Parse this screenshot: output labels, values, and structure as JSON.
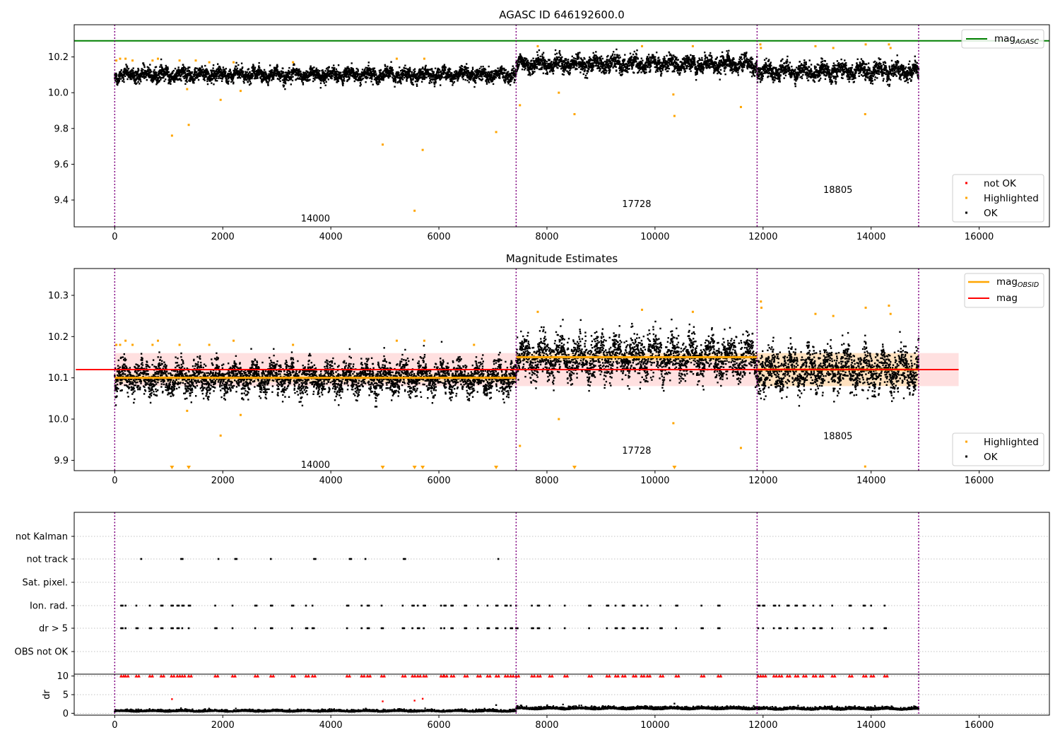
{
  "chart_data": [
    {
      "panel": "top",
      "type": "scatter",
      "title": "AGASC ID 646192600.0",
      "xlabel": "",
      "ylabel": "",
      "xlim": [
        -750,
        17300
      ],
      "ylim": [
        9.25,
        10.38
      ],
      "x_ticks": [
        0,
        2000,
        4000,
        6000,
        8000,
        10000,
        12000,
        14000,
        16000
      ],
      "y_ticks": [
        9.4,
        9.6,
        9.8,
        10.0,
        10.2
      ],
      "obs_boundaries": [
        0,
        7430,
        11890,
        14880
      ],
      "obs_labels": [
        {
          "label": "14000",
          "x": 3715,
          "y": 9.3
        },
        {
          "label": "17728",
          "x": 9660,
          "y": 9.38
        },
        {
          "label": "18805",
          "x": 13385,
          "y": 9.46
        }
      ],
      "mag_agasc": 10.29,
      "ok_segments": [
        {
          "x0": 0,
          "x1": 7430,
          "center": 10.1,
          "spread": 0.05
        },
        {
          "x0": 7430,
          "x1": 11890,
          "center": 10.16,
          "spread": 0.06
        },
        {
          "x0": 11890,
          "x1": 14880,
          "center": 10.12,
          "spread": 0.06
        }
      ],
      "highlighted_points": [
        [
          30,
          10.18
        ],
        [
          100,
          10.19
        ],
        [
          200,
          10.19
        ],
        [
          330,
          10.18
        ],
        [
          700,
          10.18
        ],
        [
          800,
          10.19
        ],
        [
          1060,
          9.76
        ],
        [
          1200,
          10.18
        ],
        [
          1340,
          10.02
        ],
        [
          1370,
          9.82
        ],
        [
          1500,
          10.18
        ],
        [
          1750,
          10.17
        ],
        [
          1960,
          9.96
        ],
        [
          2200,
          10.17
        ],
        [
          2330,
          10.01
        ],
        [
          3300,
          10.17
        ],
        [
          4960,
          9.71
        ],
        [
          5220,
          10.19
        ],
        [
          5550,
          9.34
        ],
        [
          5700,
          9.68
        ],
        [
          5730,
          10.19
        ],
        [
          7060,
          9.78
        ],
        [
          7500,
          9.93
        ],
        [
          7830,
          10.26
        ],
        [
          8220,
          10.0
        ],
        [
          8510,
          9.88
        ],
        [
          9760,
          10.26
        ],
        [
          10340,
          9.99
        ],
        [
          10360,
          9.87
        ],
        [
          10700,
          10.26
        ],
        [
          11590,
          9.92
        ],
        [
          11950,
          10.27
        ],
        [
          11960,
          10.25
        ],
        [
          12970,
          10.26
        ],
        [
          13300,
          10.25
        ],
        [
          13890,
          9.88
        ],
        [
          13900,
          10.27
        ],
        [
          14330,
          10.27
        ],
        [
          14360,
          10.25
        ]
      ],
      "legend": {
        "position": "lower-right",
        "entries": [
          "not OK",
          "Highlighted",
          "OK"
        ]
      },
      "legend_line": {
        "position": "upper-right",
        "entries": [
          "mag",
          "AGASC"
        ]
      }
    },
    {
      "panel": "middle",
      "type": "scatter",
      "title": "Magnitude Estimates",
      "xlabel": "",
      "ylabel": "",
      "xlim": [
        -750,
        17300
      ],
      "ylim": [
        9.875,
        10.365
      ],
      "x_ticks": [
        0,
        2000,
        4000,
        6000,
        8000,
        10000,
        12000,
        14000,
        16000
      ],
      "y_ticks": [
        9.9,
        10.0,
        10.1,
        10.2,
        10.3
      ],
      "obs_boundaries": [
        0,
        7430,
        11890,
        14880
      ],
      "obs_labels": [
        {
          "label": "14000",
          "x": 3715,
          "y": 9.89
        },
        {
          "label": "17728",
          "x": 9660,
          "y": 9.925
        },
        {
          "label": "18805",
          "x": 13385,
          "y": 9.96
        }
      ],
      "mag": 10.12,
      "mag_band": [
        10.08,
        10.16
      ],
      "mag_xrange": [
        0,
        15620
      ],
      "mag_obsid": [
        {
          "x0": 0,
          "x1": 7430,
          "value": 10.1,
          "band": [
            10.09,
            10.11
          ]
        },
        {
          "x0": 7430,
          "x1": 11890,
          "value": 10.15,
          "band": [
            10.14,
            10.16
          ]
        },
        {
          "x0": 11890,
          "x1": 14880,
          "value": 10.12,
          "band": [
            10.08,
            10.16
          ]
        }
      ],
      "ok_segments": [
        {
          "x0": 0,
          "x1": 7430,
          "center": 10.1,
          "spread": 0.05
        },
        {
          "x0": 7430,
          "x1": 11890,
          "center": 10.15,
          "spread": 0.065
        },
        {
          "x0": 11890,
          "x1": 14880,
          "center": 10.12,
          "spread": 0.065
        }
      ],
      "highlighted_points": [
        [
          30,
          10.18
        ],
        [
          100,
          10.18
        ],
        [
          200,
          10.19
        ],
        [
          330,
          10.18
        ],
        [
          700,
          10.18
        ],
        [
          800,
          10.19
        ],
        [
          1200,
          10.18
        ],
        [
          1340,
          10.02
        ],
        [
          1750,
          10.18
        ],
        [
          1960,
          9.96
        ],
        [
          2200,
          10.19
        ],
        [
          2330,
          10.01
        ],
        [
          3300,
          10.18
        ],
        [
          5220,
          10.19
        ],
        [
          5730,
          10.19
        ],
        [
          6650,
          10.18
        ],
        [
          7500,
          9.935
        ],
        [
          7830,
          10.26
        ],
        [
          8220,
          10.0
        ],
        [
          9760,
          10.265
        ],
        [
          10340,
          9.99
        ],
        [
          10700,
          10.26
        ],
        [
          11590,
          9.93
        ],
        [
          11960,
          10.285
        ],
        [
          11970,
          10.27
        ],
        [
          12970,
          10.255
        ],
        [
          13300,
          10.25
        ],
        [
          13890,
          9.885
        ],
        [
          13900,
          10.27
        ],
        [
          14330,
          10.275
        ],
        [
          14360,
          10.255
        ]
      ],
      "clipped_points_x": [
        1060,
        1370,
        4960,
        5550,
        5700,
        7060,
        8510,
        10360
      ],
      "legend": {
        "position": "lower-right",
        "entries": [
          "Highlighted",
          "OK"
        ]
      },
      "legend_line": {
        "position": "upper-right",
        "entries": [
          "mag",
          "OBSID",
          "mag"
        ]
      }
    },
    {
      "panel": "flags",
      "type": "scatter",
      "title": "",
      "xlim": [
        -750,
        17300
      ],
      "categories": [
        "not Kalman",
        "not track",
        "Sat. pixel.",
        "Ion. rad.",
        "dr > 5",
        "OBS not OK"
      ],
      "obs_boundaries": [
        0,
        7430,
        11890,
        14880
      ],
      "flag_x": {
        "not Kalman": [],
        "not track": [
          490,
          1230,
          1920,
          2230,
          2890,
          3690,
          4350,
          4640,
          5350,
          7100
        ],
        "Sat. pixel.": [],
        "Ion. rad.": [
          120,
          200,
          400,
          650,
          860,
          1050,
          1160,
          1250,
          1370,
          1860,
          2180,
          2600,
          2890,
          3280,
          3540,
          3660,
          4300,
          4570,
          4680,
          4940,
          5330,
          5510,
          5610,
          5720,
          6040,
          6100,
          6230,
          6480,
          6720,
          6900,
          7060,
          7230,
          7330,
          7430,
          7720,
          7830,
          8050,
          8330,
          8780,
          9110,
          9270,
          9400,
          9600,
          9750,
          9860,
          10100,
          10390,
          10860,
          11170,
          11910,
          12000,
          12200,
          12300,
          12450,
          12600,
          12750,
          12930,
          13060,
          13280,
          13600,
          13860,
          14000,
          14250
        ],
        "dr > 5": [
          120,
          200,
          400,
          650,
          860,
          1050,
          1160,
          1250,
          1370,
          1860,
          2180,
          2600,
          2890,
          3280,
          3540,
          3660,
          4300,
          4570,
          4680,
          4940,
          5330,
          5510,
          5610,
          5720,
          6040,
          6100,
          6230,
          6480,
          6720,
          6900,
          7060,
          7230,
          7330,
          7430,
          7720,
          7830,
          8050,
          8330,
          8780,
          9110,
          9270,
          9400,
          9600,
          9750,
          9860,
          10100,
          10390,
          10860,
          11170,
          11910,
          12000,
          12200,
          12300,
          12450,
          12600,
          12750,
          12930,
          13060,
          13280,
          13600,
          13860,
          14000,
          14250
        ],
        "OBS not OK": []
      }
    },
    {
      "panel": "dr",
      "type": "scatter",
      "title": "",
      "xlabel": "",
      "ylabel": "dr",
      "xlim": [
        -750,
        17300
      ],
      "ylim": [
        -0.5,
        10.5
      ],
      "x_ticks": [
        0,
        2000,
        4000,
        6000,
        8000,
        10000,
        12000,
        14000,
        16000
      ],
      "y_ticks": [
        0,
        5,
        10
      ],
      "obs_boundaries": [
        0,
        7430,
        11890,
        14880
      ],
      "clipped_x": [
        120,
        200,
        400,
        650,
        860,
        1050,
        1160,
        1250,
        1370,
        1860,
        2180,
        2600,
        2890,
        3280,
        3540,
        3660,
        4300,
        4570,
        4680,
        4940,
        5330,
        5510,
        5610,
        5720,
        6040,
        6100,
        6230,
        6480,
        6720,
        6900,
        7060,
        7230,
        7330,
        7430,
        7720,
        7830,
        8050,
        8330,
        8780,
        9110,
        9270,
        9400,
        9600,
        9750,
        9860,
        10100,
        10390,
        10860,
        11170,
        11910,
        12000,
        12200,
        12300,
        12450,
        12600,
        12750,
        12930,
        13060,
        13280,
        13600,
        13860,
        14000,
        14250
      ],
      "outliers": [
        [
          1060,
          3.8
        ],
        [
          4960,
          3.2
        ],
        [
          5550,
          3.4
        ],
        [
          5700,
          3.9
        ],
        [
          7060,
          2.2
        ],
        [
          10360,
          2.6
        ]
      ],
      "baseline": [
        {
          "x0": 0,
          "x1": 7430,
          "center": 0.45,
          "spread": 0.3
        },
        {
          "x0": 7430,
          "x1": 11890,
          "center": 1.1,
          "spread": 0.4
        },
        {
          "x0": 11890,
          "x1": 14880,
          "center": 1.0,
          "spread": 0.4
        }
      ]
    }
  ],
  "legend_labels": {
    "not_ok": "not OK",
    "highlighted": "Highlighted",
    "ok": "OK",
    "mag_agasc_main": "mag",
    "mag_agasc_sub": "AGASC",
    "mag_obsid_main": "mag",
    "mag_obsid_sub": "OBSID",
    "mag": "mag"
  },
  "colors": {
    "ok": "#000000",
    "highlighted": "#ffa500",
    "not_ok": "#ff0000",
    "agasc_line": "#008000",
    "mag_line": "#ff0000",
    "mag_band": "#ffd8d8",
    "obsid_line": "#ffa500",
    "obsid_band": "#ffe1b0",
    "boundary": "#800080",
    "grid": "#b0b0b0"
  }
}
